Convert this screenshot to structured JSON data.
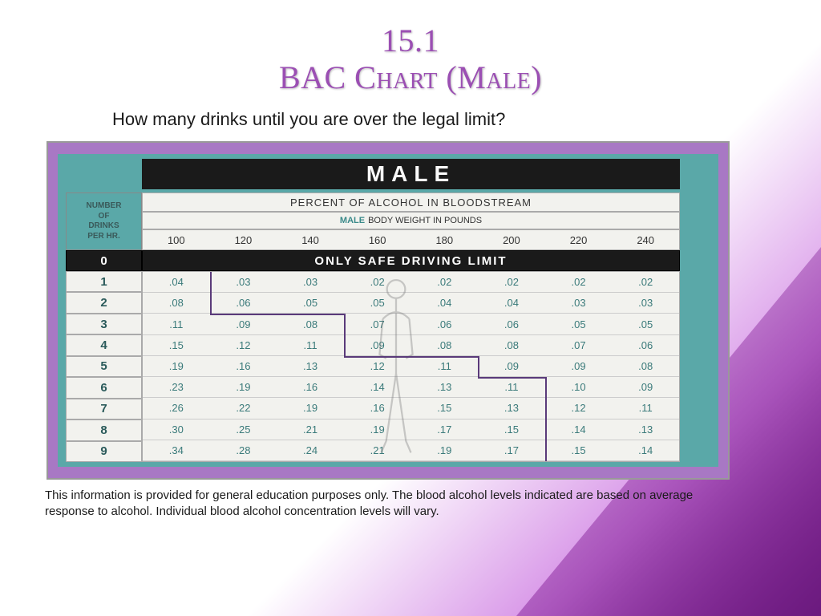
{
  "title_line1": "15.1",
  "title_line2": "BAC Chart (Male)",
  "subtitle": "How many drinks until you are over the legal limit?",
  "chart": {
    "banner": "MALE",
    "left_header": [
      "NUMBER",
      "OF",
      "DRINKS",
      "PER HR."
    ],
    "percent_label": "PERCENT OF ALCOHOL IN BLOODSTREAM",
    "weight_label_prefix": "MALE",
    "weight_label_rest": "BODY WEIGHT IN POUNDS",
    "weights": [
      "100",
      "120",
      "140",
      "160",
      "180",
      "200",
      "220",
      "240"
    ],
    "safe_label": "ONLY SAFE DRIVING LIMIT",
    "drink_numbers": [
      "1",
      "2",
      "3",
      "4",
      "5",
      "6",
      "7",
      "8",
      "9"
    ],
    "rows": [
      [
        ".04",
        ".03",
        ".03",
        ".02",
        ".02",
        ".02",
        ".02",
        ".02"
      ],
      [
        ".08",
        ".06",
        ".05",
        ".05",
        ".04",
        ".04",
        ".03",
        ".03"
      ],
      [
        ".11",
        ".09",
        ".08",
        ".07",
        ".06",
        ".06",
        ".05",
        ".05"
      ],
      [
        ".15",
        ".12",
        ".11",
        ".09",
        ".08",
        ".08",
        ".07",
        ".06"
      ],
      [
        ".19",
        ".16",
        ".13",
        ".12",
        ".11",
        ".09",
        ".09",
        ".08"
      ],
      [
        ".23",
        ".19",
        ".16",
        ".14",
        ".13",
        ".11",
        ".10",
        ".09"
      ],
      [
        ".26",
        ".22",
        ".19",
        ".16",
        ".15",
        ".13",
        ".12",
        ".11"
      ],
      [
        ".30",
        ".25",
        ".21",
        ".19",
        ".17",
        ".15",
        ".14",
        ".13"
      ],
      [
        ".34",
        ".28",
        ".24",
        ".21",
        ".19",
        ".17",
        ".15",
        ".14"
      ]
    ],
    "step_boundary_cols": [
      1,
      1,
      3,
      3,
      5,
      6,
      6,
      6,
      6
    ],
    "colors": {
      "outer_bg": "#a878c4",
      "inner_bg": "#5aa8a8",
      "cell_bg": "#f2f2ee",
      "text_teal": "#3a7a7a",
      "banner_bg": "#1a1a1a",
      "step_border": "#5a3a7a"
    }
  },
  "disclaimer": "This information is provided for general education purposes only. The blood alcohol levels indicated are based on average response to alcohol. Individual blood alcohol concentration levels will vary."
}
